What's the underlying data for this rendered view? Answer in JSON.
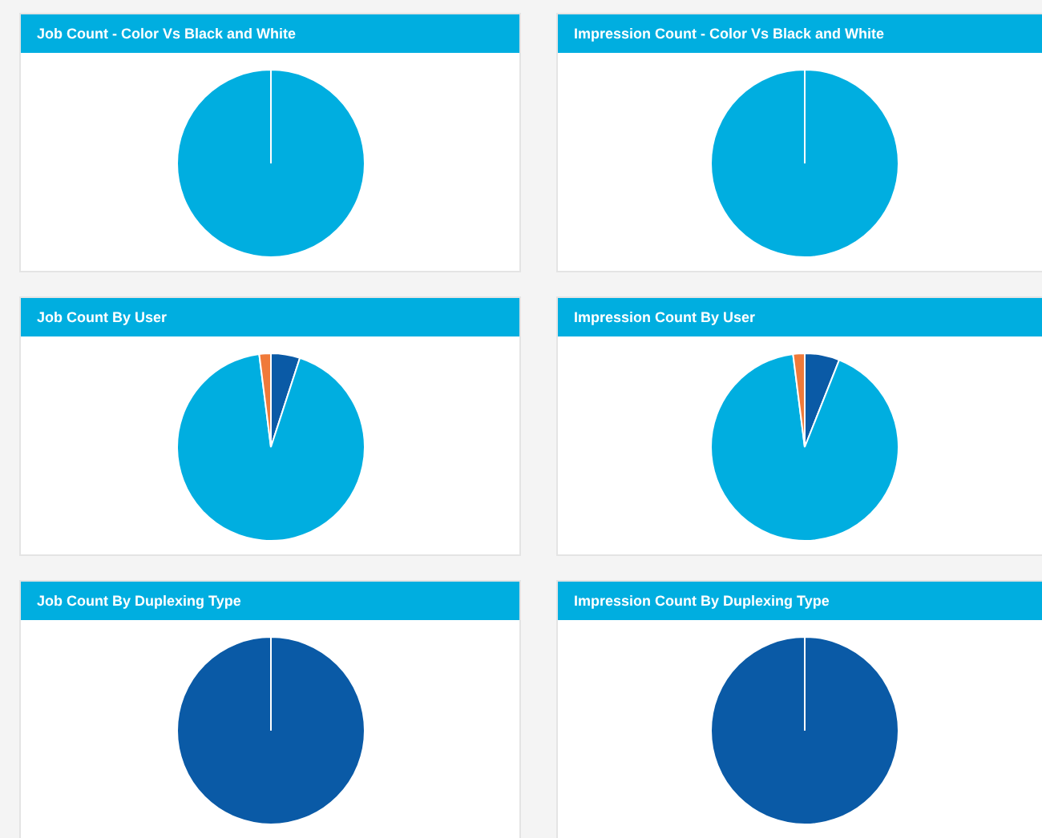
{
  "chart_data": [
    {
      "type": "pie",
      "title": "Job Count - Color Vs Black and White",
      "categories": [
        null
      ],
      "values": [
        100
      ],
      "colors": [
        "#00aee0"
      ]
    },
    {
      "type": "pie",
      "title": "Impression Count - Color Vs Black and White",
      "categories": [
        null
      ],
      "values": [
        100
      ],
      "colors": [
        "#00aee0"
      ]
    },
    {
      "type": "pie",
      "title": "Job Count By User",
      "categories": [
        null,
        null,
        null
      ],
      "values": [
        5,
        93,
        2
      ],
      "colors": [
        "#0a5aa6",
        "#00aee0",
        "#f07a3a"
      ]
    },
    {
      "type": "pie",
      "title": "Impression Count By User",
      "categories": [
        null,
        null,
        null
      ],
      "values": [
        6,
        92,
        2
      ],
      "colors": [
        "#0a5aa6",
        "#00aee0",
        "#f07a3a"
      ]
    },
    {
      "type": "pie",
      "title": "Job Count By Duplexing Type",
      "categories": [
        null
      ],
      "values": [
        100
      ],
      "colors": [
        "#0a5aa6"
      ]
    },
    {
      "type": "pie",
      "title": "Impression Count By Duplexing Type",
      "categories": [
        null
      ],
      "values": [
        100
      ],
      "colors": [
        "#0a5aa6"
      ]
    }
  ]
}
